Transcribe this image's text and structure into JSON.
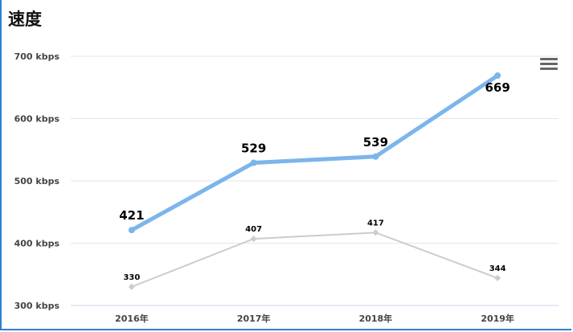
{
  "title": "速度",
  "menu": {
    "icon": "hamburger-menu-icon"
  },
  "chart_data": {
    "type": "line",
    "categories": [
      "2016年",
      "2017年",
      "2018年",
      "2019年"
    ],
    "ylim": [
      300,
      700
    ],
    "yticks": [
      300,
      400,
      500,
      600,
      700
    ],
    "ytick_labels": [
      "300 kbps",
      "400 kbps",
      "500 kbps",
      "600 kbps",
      "700 kbps"
    ],
    "grid": true,
    "series": [
      {
        "values": [
          421,
          529,
          539,
          669
        ],
        "color": "#7cb5ec"
      },
      {
        "values": [
          330,
          407,
          417,
          344
        ],
        "color": "#cccccc"
      }
    ]
  }
}
